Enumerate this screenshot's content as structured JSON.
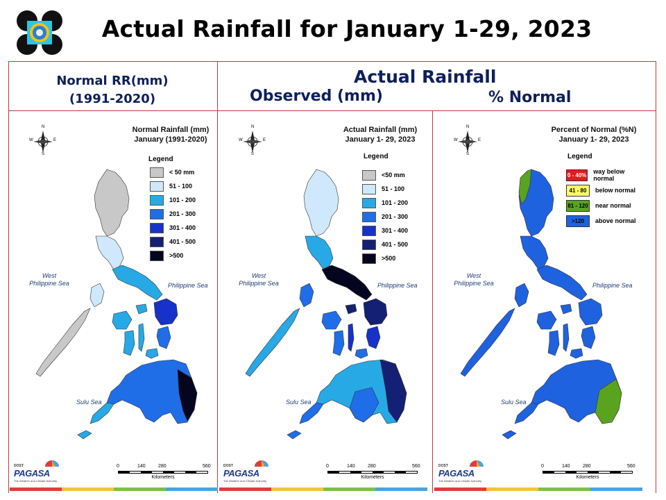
{
  "header": {
    "title": "Actual Rainfall for January 1-29, 2023",
    "normal_line1": "Normal RR(mm)",
    "normal_line2": "(1991-2020)",
    "actual": "Actual Rainfall",
    "observed": "Observed (mm)",
    "percent": "% Normal"
  },
  "colors": {
    "frame": "#c0393b",
    "heading": "#0d1f5c",
    "stripe": [
      "#e23b3b",
      "#f5c242",
      "#7cc04b",
      "#4aa3df"
    ]
  },
  "panels": [
    {
      "id": "normal",
      "title_line1": "Normal Rainfall (mm)",
      "title_line2": "January (1991-2020)",
      "legend_title": "Legend",
      "legend": [
        {
          "label": "< 50 mm",
          "color": "#c8c8c8"
        },
        {
          "label": "51 - 100",
          "color": "#cfe8fb"
        },
        {
          "label": "101 - 200",
          "color": "#27a9e6"
        },
        {
          "label": "201 - 300",
          "color": "#1f6ee8"
        },
        {
          "label": "301 - 400",
          "color": "#1732c8"
        },
        {
          "label": "401 - 500",
          "color": "#142073"
        },
        {
          "label": ">500",
          "color": "#05051f"
        }
      ]
    },
    {
      "id": "actual",
      "title_line1": "Actual Rainfall (mm)",
      "title_line2": "January 1- 29, 2023",
      "legend_title": "Legend",
      "legend": [
        {
          "label": "<50 mm",
          "color": "#c8c8c8"
        },
        {
          "label": "51 - 100",
          "color": "#cfe8fb"
        },
        {
          "label": "101 - 200",
          "color": "#27a9e6"
        },
        {
          "label": "201 - 300",
          "color": "#1f6ee8"
        },
        {
          "label": "301 - 400",
          "color": "#1732c8"
        },
        {
          "label": "401 - 500",
          "color": "#142073"
        },
        {
          "label": ">500",
          "color": "#05051f"
        }
      ]
    },
    {
      "id": "percent",
      "title_line1": "Percent of Normal (%N)",
      "title_line2": "January 1- 29, 2023",
      "legend_title": "Legend",
      "legend": [
        {
          "range": "0 - 40%",
          "label": "way below normal",
          "color": "#e8191b",
          "text_color": "#ffffff"
        },
        {
          "range": "41 - 80",
          "label": "below normal",
          "color": "#ffff66",
          "text_color": "#000000"
        },
        {
          "range": "81 - 120",
          "label": "near normal",
          "color": "#5aa31f",
          "text_color": "#000000"
        },
        {
          "range": ">120",
          "label": "above normal",
          "color": "#1f62e0",
          "text_color": "#000000"
        }
      ]
    }
  ],
  "map_labels": {
    "west_line1": "West",
    "west_line2": "Philippine Sea",
    "east": "Philippine Sea",
    "sulu": "Sulu Sea",
    "compass": {
      "n": "N",
      "s": "S",
      "e": "E",
      "w": "W"
    },
    "scale_ticks": [
      "0",
      "140",
      "280",
      "560"
    ],
    "scale_unit": "Kilometers",
    "logo_text": "PAGASA",
    "logo_prefix": "DOST",
    "logo_sub": "The Weather and Climate Authority"
  }
}
